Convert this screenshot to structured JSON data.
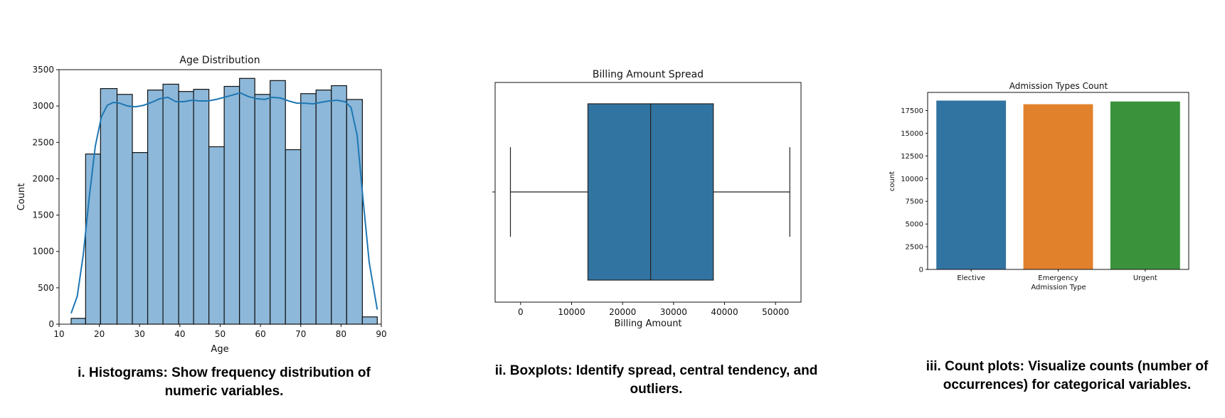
{
  "captions": {
    "histogram": "i. Histograms: Show frequency distribution of numeric variables.",
    "boxplot": "ii. Boxplots: Identify spread, central tendency, and outliers.",
    "countplot": "iii. Count plots: Visualize counts (number of occurrences) for categorical variables."
  },
  "chart_data": [
    {
      "type": "bar",
      "subtype": "histogram-with-kde",
      "title": "Age Distribution",
      "xlabel": "Age",
      "ylabel": "Count",
      "xlim": [
        10,
        90
      ],
      "ylim": [
        0,
        3500
      ],
      "xticks": [
        10,
        20,
        30,
        40,
        50,
        60,
        70,
        80,
        90
      ],
      "yticks": [
        0,
        500,
        1000,
        1500,
        2000,
        2500,
        3000,
        3500
      ],
      "bin_edges": [
        13,
        16.6,
        20.3,
        24.4,
        28.2,
        32,
        35.8,
        39.7,
        43.4,
        47.2,
        51,
        54.8,
        58.6,
        62.4,
        66.2,
        70,
        73.8,
        77.6,
        81.4,
        85.3,
        89
      ],
      "values": [
        80,
        2340,
        3240,
        3160,
        2360,
        3220,
        3300,
        3200,
        3230,
        2440,
        3270,
        3380,
        3160,
        3350,
        2400,
        3170,
        3220,
        3280,
        3090,
        100
      ],
      "kde": {
        "x": [
          13,
          14.5,
          16,
          17.5,
          19,
          20.5,
          22,
          23.5,
          25,
          27,
          29,
          31,
          33,
          35,
          37,
          39,
          41,
          43,
          45,
          47,
          49,
          51,
          53,
          55,
          57,
          59,
          61,
          63,
          65,
          67,
          69,
          71,
          73,
          75,
          77,
          79,
          81,
          82.5,
          84,
          85.5,
          87,
          89
        ],
        "y": [
          150,
          380,
          950,
          1750,
          2450,
          2850,
          3010,
          3050,
          3040,
          3000,
          2990,
          3010,
          3050,
          3100,
          3120,
          3060,
          3060,
          3080,
          3070,
          3070,
          3090,
          3120,
          3150,
          3180,
          3130,
          3100,
          3090,
          3120,
          3110,
          3070,
          3040,
          3040,
          3030,
          3050,
          3070,
          3080,
          3060,
          2980,
          2600,
          1700,
          850,
          200
        ]
      },
      "colors": {
        "bar": "#8db8d9",
        "edge": "#111111",
        "kde": "#1f77b4"
      },
      "grid": false
    },
    {
      "type": "boxplot",
      "title": "Billing Amount Spread",
      "xlabel": "Billing Amount",
      "ylabel": "",
      "xlim": [
        -5000,
        55000
      ],
      "xticks": [
        0,
        10000,
        20000,
        30000,
        40000,
        50000
      ],
      "box": {
        "whisker_low": -2000,
        "q1": 13200,
        "median": 25500,
        "q3": 37800,
        "whisker_high": 52800
      },
      "colors": {
        "box": "#3274a1"
      },
      "grid": false
    },
    {
      "type": "bar",
      "subtype": "countplot",
      "title": "Admission Types Count",
      "xlabel": "Admission Type",
      "ylabel": "count",
      "categories": [
        "Elective",
        "Emergency",
        "Urgent"
      ],
      "values": [
        18600,
        18200,
        18500
      ],
      "ylim": [
        0,
        19500
      ],
      "yticks": [
        0,
        2500,
        5000,
        7500,
        10000,
        12500,
        15000,
        17500
      ],
      "colors": [
        "#3274a1",
        "#e1812c",
        "#3a923a"
      ],
      "grid": false
    }
  ]
}
